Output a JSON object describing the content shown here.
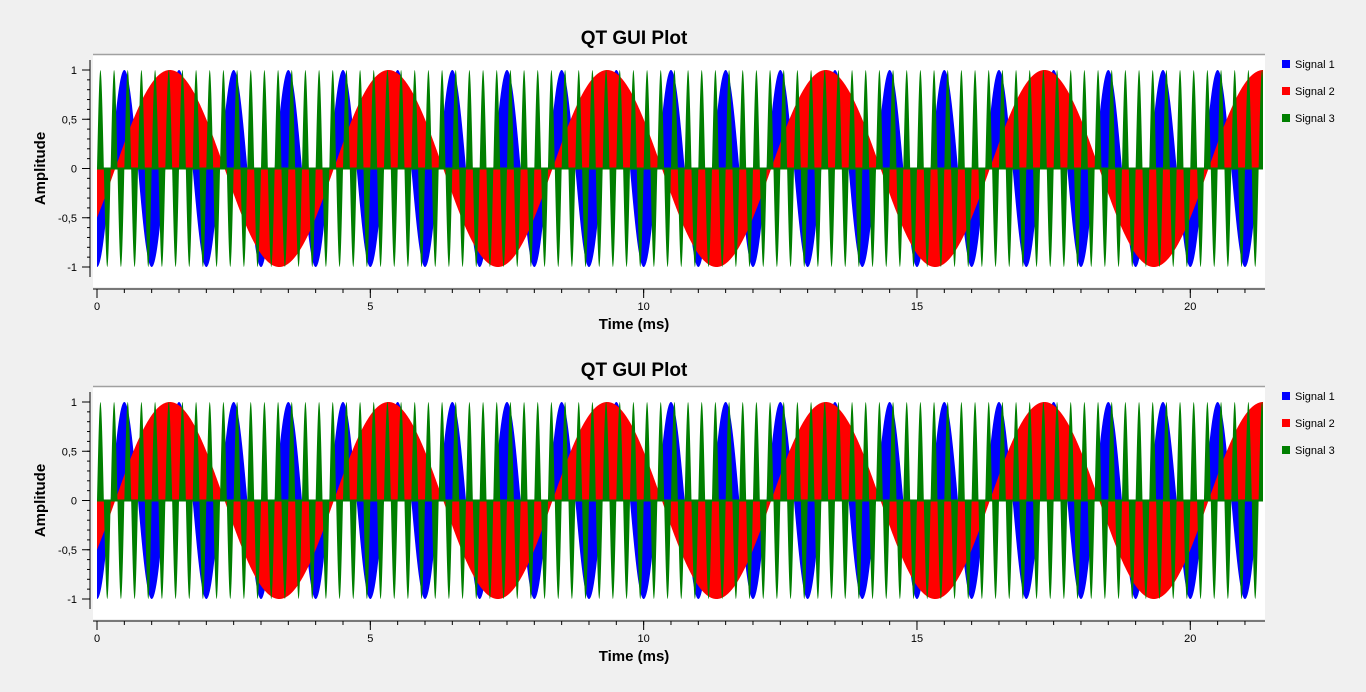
{
  "chart_data": [
    {
      "type": "line",
      "title": "QT GUI Plot",
      "xlabel": "Time (ms)",
      "ylabel": "Amplitude",
      "xlim": [
        0,
        21.33
      ],
      "ylim": [
        -1,
        1
      ],
      "x_ticks": [
        0,
        5,
        10,
        15,
        20
      ],
      "x_tick_labels": [
        "0",
        "5",
        "10",
        "15",
        "20"
      ],
      "y_ticks": [
        1,
        0.5,
        0,
        -0.5,
        -1
      ],
      "y_tick_labels": [
        "1",
        "0,5",
        "0",
        "-0,5",
        "-1"
      ],
      "grid": false,
      "legend_position": "right",
      "series": [
        {
          "name": "Signal 1",
          "color": "#0000ff",
          "waveform": "sine",
          "frequency_khz": 1.0,
          "amplitude": 1,
          "phase_deg": -90
        },
        {
          "name": "Signal 2",
          "color": "#ff0000",
          "waveform": "sine",
          "frequency_khz": 0.25,
          "amplitude": 1,
          "phase_deg": -30
        },
        {
          "name": "Signal 3",
          "color": "#007f00",
          "waveform": "sine",
          "frequency_khz": 4.0,
          "amplitude": 1,
          "phase_deg": 0
        }
      ]
    },
    {
      "type": "line",
      "title": "QT GUI Plot",
      "xlabel": "Time (ms)",
      "ylabel": "Amplitude",
      "xlim": [
        0,
        21.33
      ],
      "ylim": [
        -1,
        1
      ],
      "x_ticks": [
        0,
        5,
        10,
        15,
        20
      ],
      "x_tick_labels": [
        "0",
        "5",
        "10",
        "15",
        "20"
      ],
      "y_ticks": [
        1,
        0.5,
        0,
        -0.5,
        -1
      ],
      "y_tick_labels": [
        "1",
        "0,5",
        "0",
        "-0,5",
        "-1"
      ],
      "grid": false,
      "legend_position": "right",
      "series": [
        {
          "name": "Signal 1",
          "color": "#0000ff",
          "waveform": "sine",
          "frequency_khz": 1.0,
          "amplitude": 1,
          "phase_deg": -90
        },
        {
          "name": "Signal 2",
          "color": "#ff0000",
          "waveform": "sine",
          "frequency_khz": 0.25,
          "amplitude": 1,
          "phase_deg": -30
        },
        {
          "name": "Signal 3",
          "color": "#007f00",
          "waveform": "sine",
          "frequency_khz": 4.0,
          "amplitude": 1,
          "phase_deg": 0
        }
      ]
    }
  ]
}
